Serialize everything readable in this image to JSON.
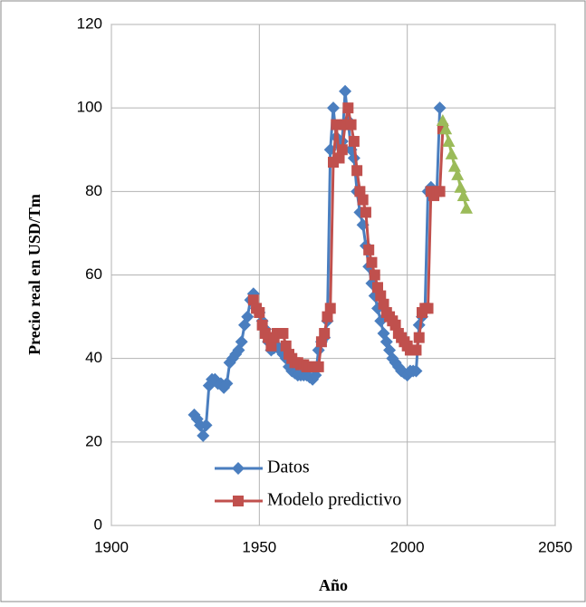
{
  "chart_data": {
    "type": "line",
    "xlabel": "Año",
    "ylabel": "Precio real en USD/Tm",
    "xlim": [
      1900,
      2050
    ],
    "xticks": [
      1900,
      1950,
      2000,
      2050
    ],
    "ylim": [
      0,
      120
    ],
    "yticks": [
      0,
      20,
      40,
      60,
      80,
      100,
      120
    ],
    "grid": true,
    "legend": "lower left",
    "series": [
      {
        "name": "Datos",
        "color": "#4a7ebf",
        "marker": "diamond",
        "x": [
          1928,
          1929,
          1930,
          1931,
          1932,
          1933,
          1934,
          1935,
          1936,
          1937,
          1938,
          1939,
          1940,
          1941,
          1942,
          1943,
          1944,
          1945,
          1946,
          1947,
          1948,
          1949,
          1950,
          1951,
          1952,
          1953,
          1954,
          1955,
          1956,
          1957,
          1958,
          1959,
          1960,
          1961,
          1962,
          1963,
          1964,
          1965,
          1966,
          1967,
          1968,
          1969,
          1970,
          1971,
          1972,
          1973,
          1974,
          1975,
          1976,
          1977,
          1978,
          1979,
          1980,
          1981,
          1982,
          1983,
          1984,
          1985,
          1986,
          1987,
          1988,
          1989,
          1990,
          1991,
          1992,
          1993,
          1994,
          1995,
          1996,
          1997,
          1998,
          1999,
          2000,
          2001,
          2002,
          2003,
          2004,
          2005,
          2006,
          2007,
          2008,
          2009,
          2010,
          2011
        ],
        "values": [
          26.5,
          25.5,
          24,
          21.5,
          24,
          33.5,
          35,
          35,
          34,
          34,
          33,
          34,
          39,
          40,
          41,
          42,
          44,
          48,
          50,
          54,
          55.5,
          52,
          51,
          49,
          47,
          44,
          42,
          42.5,
          43,
          42,
          41,
          40,
          38,
          37,
          36.5,
          36,
          36,
          36,
          36,
          35.5,
          35,
          36,
          42,
          44,
          45,
          49,
          90,
          100,
          93,
          91,
          92,
          104,
          97,
          90,
          88,
          80,
          75,
          72,
          67,
          62,
          58,
          55,
          52,
          49,
          46,
          44,
          42,
          40,
          39,
          38,
          37,
          36.5,
          36,
          37,
          37,
          37,
          48,
          50,
          52,
          80,
          81,
          80,
          80,
          100
        ]
      },
      {
        "name": "Modelo predictivo",
        "color": "#c0504d",
        "marker": "square",
        "x": [
          1948,
          1949,
          1950,
          1951,
          1952,
          1953,
          1954,
          1955,
          1956,
          1957,
          1958,
          1959,
          1960,
          1961,
          1962,
          1963,
          1964,
          1965,
          1966,
          1967,
          1968,
          1969,
          1970,
          1971,
          1972,
          1973,
          1974,
          1975,
          1976,
          1977,
          1978,
          1979,
          1980,
          1981,
          1982,
          1983,
          1984,
          1985,
          1986,
          1987,
          1988,
          1989,
          1990,
          1991,
          1992,
          1993,
          1994,
          1995,
          1996,
          1997,
          1998,
          1999,
          2000,
          2001,
          2002,
          2003,
          2004,
          2005,
          2006,
          2007,
          2008,
          2009,
          2010,
          2011,
          2012
        ],
        "values": [
          54,
          52,
          51,
          48,
          46,
          45,
          43,
          45,
          46,
          46,
          46,
          43,
          41,
          40,
          39,
          39,
          38.5,
          38.5,
          38,
          38,
          38,
          38,
          38,
          44,
          46,
          50,
          52,
          87,
          96,
          88,
          90,
          96,
          100,
          96,
          92,
          85,
          80,
          78,
          75,
          66,
          63,
          60,
          57,
          55,
          53,
          51,
          50,
          49,
          48,
          46,
          45,
          44,
          43,
          42,
          42,
          42,
          45,
          51,
          52,
          52,
          80,
          79,
          80,
          80,
          95
        ]
      },
      {
        "color": "#9bbb59",
        "marker": "triangle",
        "x": [
          2012,
          2013,
          2014,
          2015,
          2016,
          2017,
          2018,
          2019,
          2020
        ],
        "values": [
          97,
          95,
          92,
          89,
          86,
          84,
          81,
          79,
          76
        ]
      }
    ]
  }
}
